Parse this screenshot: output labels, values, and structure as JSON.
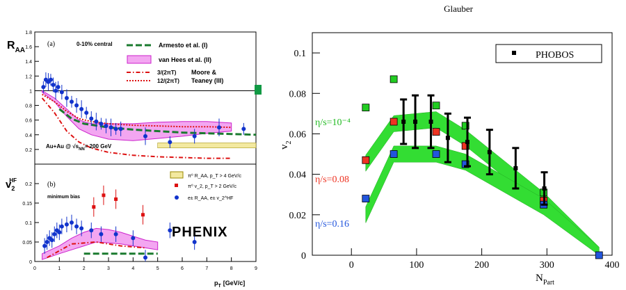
{
  "chart_data": [
    {
      "type": "scatter",
      "panel": "R_AA",
      "ylabel": "R",
      "ylabel_sub": "AA",
      "panel_tag": "(a)",
      "centrality": "0-10% central",
      "system": "Au+Au @",
      "energy": "= 200 GeV",
      "ylim": [
        0,
        1.8
      ],
      "yticks": [
        "0.2",
        "0.4",
        "0.6",
        "0.8",
        "1",
        "1.2",
        "1.4",
        "1.6",
        "1.8"
      ],
      "yticks_v": [
        0.2,
        0.4,
        0.6,
        0.8,
        1.0,
        1.2,
        1.4,
        1.6,
        1.8
      ],
      "legend": {
        "armesto": "Armesto et al. (I)",
        "vanhees": "van Hees et al. (II)",
        "moore_l1": "3/(2πT)",
        "moore_l2": "12/(2πT)",
        "moore_name": "Moore &",
        "moore_name2": "Teaney (III)"
      },
      "series": [
        {
          "name": "PHENIX e± R_AA",
          "x": [
            0.35,
            0.45,
            0.55,
            0.65,
            0.75,
            0.85,
            0.95,
            1.1,
            1.3,
            1.5,
            1.7,
            1.9,
            2.1,
            2.3,
            2.5,
            2.7,
            2.9,
            3.1,
            3.3,
            3.5,
            4.5,
            5.5,
            6.5,
            7.5,
            8.5
          ],
          "y": [
            1.05,
            1.15,
            1.12,
            1.15,
            1.08,
            1.0,
            1.05,
            0.98,
            0.9,
            0.85,
            0.8,
            0.75,
            0.7,
            0.62,
            0.58,
            0.55,
            0.52,
            0.5,
            0.48,
            0.48,
            0.38,
            0.3,
            0.38,
            0.5,
            0.48
          ]
        }
      ],
      "models": {
        "armesto": {
          "x": [
            1,
            1.5,
            2,
            3,
            4,
            5,
            6,
            7,
            8,
            9
          ],
          "y": [
            0.75,
            0.62,
            0.55,
            0.5,
            0.47,
            0.45,
            0.43,
            0.42,
            0.41,
            0.4
          ]
        },
        "vanhees_hi": {
          "x": [
            0.3,
            0.8,
            1.3,
            1.8,
            2.3,
            3,
            4,
            5,
            6,
            7,
            8
          ],
          "y": [
            1.0,
            0.9,
            0.75,
            0.6,
            0.55,
            0.55,
            0.55,
            0.57,
            0.58,
            0.58,
            0.56
          ]
        },
        "vanhees_lo": {
          "x": [
            0.3,
            0.8,
            1.3,
            1.8,
            2.3,
            3,
            4,
            5,
            6,
            7,
            8
          ],
          "y": [
            0.98,
            0.85,
            0.65,
            0.48,
            0.4,
            0.34,
            0.32,
            0.35,
            0.38,
            0.42,
            0.45
          ]
        },
        "moore3": {
          "x": [
            0.3,
            0.8,
            1.3,
            1.8,
            2.3,
            3,
            4,
            5,
            6,
            7,
            8
          ],
          "y": [
            0.95,
            0.85,
            0.72,
            0.62,
            0.58,
            0.55,
            0.53,
            0.52,
            0.51,
            0.51,
            0.5
          ]
        },
        "moore12": {
          "x": [
            0.3,
            0.8,
            1.3,
            1.8,
            2.3,
            3,
            4,
            5,
            6,
            7,
            8
          ],
          "y": [
            0.9,
            0.7,
            0.45,
            0.3,
            0.22,
            0.16,
            0.12,
            0.1,
            0.09,
            0.08,
            0.08
          ]
        }
      }
    },
    {
      "type": "scatter",
      "panel": "v2HF",
      "ylabel": "v",
      "ylabel_sub": "2",
      "ylabel_sup": "HF",
      "panel_tag": "(b)",
      "centrality": "minimum bias",
      "xlabel": "p",
      "xlabel_sub": "T",
      "xlabel_unit": "[GeV/c]",
      "xlim": [
        0,
        9
      ],
      "xticks": [
        "0",
        "1",
        "2",
        "3",
        "4",
        "5",
        "6",
        "7",
        "8",
        "9"
      ],
      "ylim": [
        0,
        0.25
      ],
      "yticks": [
        "0",
        "0.05",
        "0.1",
        "0.15",
        "0.2"
      ],
      "yticks_v": [
        0,
        0.05,
        0.1,
        0.15,
        0.2
      ],
      "legend": {
        "band": "π⁰ R_AA, p_T > 4 GeV/c",
        "pi0v2": "π⁰ v_2, p_T > 2 GeV/c",
        "elec": "e± R_AA, e± v_2^HF"
      },
      "series": [
        {
          "name": "PHENIX e± v2",
          "x": [
            0.4,
            0.5,
            0.6,
            0.7,
            0.8,
            0.9,
            1.0,
            1.1,
            1.3,
            1.5,
            1.7,
            1.9,
            2.3,
            2.7,
            3.3,
            4.0,
            4.5,
            5.5,
            6.5
          ],
          "y": [
            0.04,
            0.05,
            0.06,
            0.055,
            0.07,
            0.08,
            0.075,
            0.09,
            0.095,
            0.1,
            0.09,
            0.085,
            0.08,
            0.07,
            0.07,
            0.06,
            0.01,
            0.08,
            0.05
          ]
        },
        {
          "name": "π0 v2",
          "x": [
            2.4,
            2.8,
            3.3,
            4.4
          ],
          "y": [
            0.14,
            0.17,
            0.16,
            0.12
          ]
        }
      ],
      "logo": "PHENIX"
    },
    {
      "type": "scatter",
      "title": "Glauber",
      "xlabel": "N",
      "xlabel_sub": "Part",
      "ylabel": "v",
      "ylabel_sub": "2",
      "xlim": [
        -60,
        400
      ],
      "ylim": [
        0,
        0.11
      ],
      "xticks": [
        "0",
        "100",
        "200",
        "300",
        "400"
      ],
      "xticks_v": [
        0,
        100,
        200,
        300,
        400
      ],
      "yticks": [
        "0",
        "0.02",
        "0.04",
        "0.06",
        "0.08",
        "0.1"
      ],
      "yticks_v": [
        0,
        0.02,
        0.04,
        0.06,
        0.08,
        0.1
      ],
      "legend": "PHOBOS",
      "band_labels": [
        "η/s=10⁻⁴",
        "η/s=0.08",
        "η/s=0.16"
      ],
      "band_colors": [
        "#22bb22",
        "#ee3322",
        "#2255dd"
      ],
      "series": [
        {
          "name": "PHOBOS",
          "x": [
            80,
            98,
            122,
            148,
            178,
            212,
            252,
            296
          ],
          "y": [
            0.066,
            0.066,
            0.066,
            0.058,
            0.056,
            0.051,
            0.043,
            0.033
          ],
          "err": [
            0.011,
            0.013,
            0.013,
            0.012,
            0.012,
            0.011,
            0.01,
            0.008
          ]
        }
      ],
      "bands": {
        "low": {
          "x": [
            22,
            65,
            130,
            175,
            295,
            380
          ],
          "y": [
            0.0455,
            0.065,
            0.067,
            0.058,
            0.027,
            0.0
          ]
        },
        "mid": {
          "x": [
            22,
            65,
            130,
            175,
            295,
            380
          ],
          "y": [
            0.042,
            0.062,
            0.064,
            0.056,
            0.026,
            0.0
          ]
        },
        "high": {
          "x": [
            22,
            65,
            130,
            175,
            295,
            380
          ],
          "y": [
            0.02,
            0.05,
            0.05,
            0.046,
            0.024,
            0.0
          ]
        }
      },
      "markers": {
        "green": {
          "x": [
            22,
            65,
            130,
            175,
            295
          ],
          "y": [
            0.073,
            0.087,
            0.074,
            0.064,
            0.031
          ]
        },
        "red": {
          "x": [
            22,
            65,
            130,
            175,
            295
          ],
          "y": [
            0.047,
            0.066,
            0.061,
            0.054,
            0.027
          ]
        },
        "blue": {
          "x": [
            22,
            65,
            130,
            175,
            295,
            380
          ],
          "y": [
            0.028,
            0.05,
            0.05,
            0.045,
            0.025,
            0.0
          ]
        }
      }
    }
  ]
}
